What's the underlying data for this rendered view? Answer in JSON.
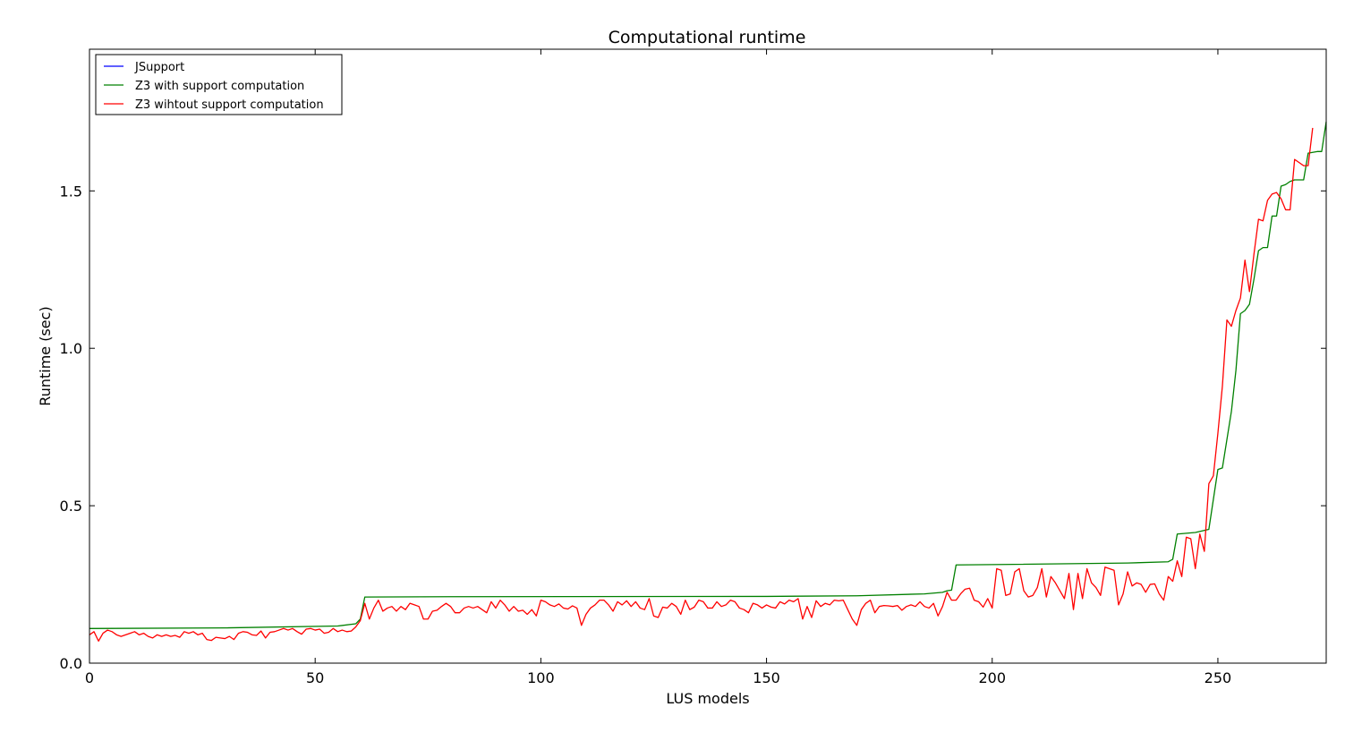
{
  "chart_data": {
    "type": "line",
    "title": "Computational runtime",
    "xlabel": "LUS models",
    "ylabel": "Runtime (sec)",
    "xlim": [
      0,
      274
    ],
    "ylim": [
      0.0,
      1.95
    ],
    "xticks": [
      0,
      50,
      100,
      150,
      200,
      250
    ],
    "xtick_labels": [
      "0",
      "50",
      "100",
      "150",
      "200",
      "250"
    ],
    "yticks": [
      0.0,
      0.5,
      1.0,
      1.5
    ],
    "ytick_labels": [
      "0.0",
      "0.5",
      "1.0",
      "1.5"
    ],
    "grid": false,
    "legend_position": "top-left",
    "series": [
      {
        "name": "JSupport",
        "color": "#0000ff",
        "keypoints": []
      },
      {
        "name": "Z3 with support computation",
        "color": "#008000",
        "keypoints": [
          [
            0,
            0.11
          ],
          [
            30,
            0.112
          ],
          [
            55,
            0.118
          ],
          [
            59,
            0.125
          ],
          [
            60,
            0.14
          ],
          [
            61,
            0.21
          ],
          [
            80,
            0.211
          ],
          [
            150,
            0.212
          ],
          [
            170,
            0.214
          ],
          [
            185,
            0.22
          ],
          [
            189,
            0.225
          ],
          [
            190,
            0.23
          ],
          [
            191,
            0.232
          ],
          [
            192,
            0.312
          ],
          [
            200,
            0.313
          ],
          [
            230,
            0.318
          ],
          [
            239,
            0.322
          ],
          [
            240,
            0.33
          ],
          [
            241,
            0.41
          ],
          [
            245,
            0.415
          ],
          [
            248,
            0.425
          ],
          [
            250,
            0.615
          ],
          [
            251,
            0.62
          ],
          [
            253,
            0.8
          ],
          [
            254,
            0.93
          ],
          [
            255,
            1.11
          ],
          [
            256,
            1.12
          ],
          [
            257,
            1.14
          ],
          [
            258,
            1.22
          ],
          [
            259,
            1.31
          ],
          [
            260,
            1.32
          ],
          [
            261,
            1.32
          ],
          [
            262,
            1.42
          ],
          [
            263,
            1.42
          ],
          [
            264,
            1.515
          ],
          [
            265,
            1.52
          ],
          [
            266,
            1.53
          ],
          [
            267,
            1.535
          ],
          [
            268,
            1.535
          ],
          [
            269,
            1.535
          ],
          [
            270,
            1.62
          ],
          [
            272,
            1.625
          ],
          [
            273,
            1.625
          ],
          [
            274,
            1.72
          ]
        ]
      },
      {
        "name": "Z3 wihtout support computation",
        "color": "#ff0000",
        "keypoints": [
          [
            0,
            0.09
          ],
          [
            1,
            0.1
          ],
          [
            2,
            0.07
          ],
          [
            3,
            0.095
          ],
          [
            4,
            0.105
          ],
          [
            5,
            0.1
          ],
          [
            6,
            0.09
          ],
          [
            7,
            0.085
          ],
          [
            8,
            0.09
          ],
          [
            9,
            0.095
          ],
          [
            10,
            0.1
          ],
          [
            11,
            0.09
          ],
          [
            12,
            0.095
          ],
          [
            13,
            0.085
          ],
          [
            14,
            0.08
          ],
          [
            15,
            0.09
          ],
          [
            16,
            0.085
          ],
          [
            17,
            0.09
          ],
          [
            18,
            0.085
          ],
          [
            19,
            0.088
          ],
          [
            20,
            0.082
          ],
          [
            21,
            0.1
          ],
          [
            22,
            0.095
          ],
          [
            23,
            0.1
          ],
          [
            24,
            0.09
          ],
          [
            25,
            0.095
          ],
          [
            26,
            0.075
          ],
          [
            27,
            0.072
          ],
          [
            28,
            0.082
          ],
          [
            29,
            0.08
          ],
          [
            30,
            0.078
          ],
          [
            31,
            0.085
          ],
          [
            32,
            0.075
          ],
          [
            33,
            0.095
          ],
          [
            34,
            0.1
          ],
          [
            35,
            0.098
          ],
          [
            36,
            0.09
          ],
          [
            37,
            0.088
          ],
          [
            38,
            0.102
          ],
          [
            39,
            0.08
          ],
          [
            40,
            0.098
          ],
          [
            41,
            0.1
          ],
          [
            42,
            0.105
          ],
          [
            43,
            0.11
          ],
          [
            44,
            0.105
          ],
          [
            45,
            0.11
          ],
          [
            46,
            0.1
          ],
          [
            47,
            0.092
          ],
          [
            48,
            0.108
          ],
          [
            49,
            0.11
          ],
          [
            50,
            0.105
          ],
          [
            51,
            0.108
          ],
          [
            52,
            0.095
          ],
          [
            53,
            0.098
          ],
          [
            54,
            0.11
          ],
          [
            55,
            0.1
          ],
          [
            56,
            0.105
          ],
          [
            57,
            0.1
          ],
          [
            58,
            0.102
          ],
          [
            59,
            0.115
          ],
          [
            60,
            0.135
          ],
          [
            61,
            0.19
          ],
          [
            62,
            0.14
          ],
          [
            63,
            0.175
          ],
          [
            64,
            0.2
          ],
          [
            65,
            0.165
          ],
          [
            66,
            0.175
          ],
          [
            67,
            0.18
          ],
          [
            68,
            0.165
          ],
          [
            69,
            0.18
          ],
          [
            70,
            0.17
          ],
          [
            71,
            0.19
          ],
          [
            72,
            0.185
          ],
          [
            73,
            0.18
          ],
          [
            74,
            0.14
          ],
          [
            75,
            0.14
          ],
          [
            76,
            0.165
          ],
          [
            77,
            0.168
          ],
          [
            78,
            0.18
          ],
          [
            79,
            0.19
          ],
          [
            80,
            0.18
          ],
          [
            81,
            0.16
          ],
          [
            82,
            0.16
          ],
          [
            83,
            0.175
          ],
          [
            84,
            0.18
          ],
          [
            85,
            0.175
          ],
          [
            86,
            0.18
          ],
          [
            87,
            0.17
          ],
          [
            88,
            0.16
          ],
          [
            89,
            0.195
          ],
          [
            90,
            0.175
          ],
          [
            91,
            0.2
          ],
          [
            92,
            0.185
          ],
          [
            93,
            0.165
          ],
          [
            94,
            0.18
          ],
          [
            95,
            0.165
          ],
          [
            96,
            0.168
          ],
          [
            97,
            0.155
          ],
          [
            98,
            0.17
          ],
          [
            99,
            0.15
          ],
          [
            100,
            0.2
          ],
          [
            101,
            0.195
          ],
          [
            102,
            0.185
          ],
          [
            103,
            0.18
          ],
          [
            104,
            0.188
          ],
          [
            105,
            0.175
          ],
          [
            106,
            0.172
          ],
          [
            107,
            0.182
          ],
          [
            108,
            0.175
          ],
          [
            109,
            0.12
          ],
          [
            110,
            0.155
          ],
          [
            111,
            0.175
          ],
          [
            112,
            0.185
          ],
          [
            113,
            0.2
          ],
          [
            114,
            0.2
          ],
          [
            115,
            0.185
          ],
          [
            116,
            0.165
          ],
          [
            117,
            0.195
          ],
          [
            118,
            0.185
          ],
          [
            119,
            0.198
          ],
          [
            120,
            0.18
          ],
          [
            121,
            0.195
          ],
          [
            122,
            0.175
          ],
          [
            123,
            0.17
          ],
          [
            124,
            0.205
          ],
          [
            125,
            0.15
          ],
          [
            126,
            0.145
          ],
          [
            127,
            0.178
          ],
          [
            128,
            0.175
          ],
          [
            129,
            0.19
          ],
          [
            130,
            0.18
          ],
          [
            131,
            0.155
          ],
          [
            132,
            0.2
          ],
          [
            133,
            0.17
          ],
          [
            134,
            0.178
          ],
          [
            135,
            0.2
          ],
          [
            136,
            0.195
          ],
          [
            137,
            0.175
          ],
          [
            138,
            0.175
          ],
          [
            139,
            0.195
          ],
          [
            140,
            0.18
          ],
          [
            141,
            0.185
          ],
          [
            142,
            0.2
          ],
          [
            143,
            0.195
          ],
          [
            144,
            0.175
          ],
          [
            145,
            0.17
          ],
          [
            146,
            0.16
          ],
          [
            147,
            0.19
          ],
          [
            148,
            0.185
          ],
          [
            149,
            0.175
          ],
          [
            150,
            0.185
          ],
          [
            151,
            0.178
          ],
          [
            152,
            0.175
          ],
          [
            153,
            0.195
          ],
          [
            154,
            0.188
          ],
          [
            155,
            0.2
          ],
          [
            156,
            0.195
          ],
          [
            157,
            0.205
          ],
          [
            158,
            0.14
          ],
          [
            159,
            0.18
          ],
          [
            160,
            0.145
          ],
          [
            161,
            0.198
          ],
          [
            162,
            0.18
          ],
          [
            163,
            0.19
          ],
          [
            164,
            0.185
          ],
          [
            165,
            0.2
          ],
          [
            166,
            0.198
          ],
          [
            167,
            0.2
          ],
          [
            168,
            0.17
          ],
          [
            169,
            0.14
          ],
          [
            170,
            0.12
          ],
          [
            171,
            0.17
          ],
          [
            172,
            0.19
          ],
          [
            173,
            0.2
          ],
          [
            174,
            0.16
          ],
          [
            175,
            0.18
          ],
          [
            176,
            0.183
          ],
          [
            177,
            0.182
          ],
          [
            178,
            0.18
          ],
          [
            179,
            0.183
          ],
          [
            180,
            0.168
          ],
          [
            181,
            0.18
          ],
          [
            182,
            0.185
          ],
          [
            183,
            0.18
          ],
          [
            184,
            0.195
          ],
          [
            185,
            0.18
          ],
          [
            186,
            0.175
          ],
          [
            187,
            0.19
          ],
          [
            188,
            0.15
          ],
          [
            189,
            0.18
          ],
          [
            190,
            0.225
          ],
          [
            191,
            0.2
          ],
          [
            192,
            0.2
          ],
          [
            193,
            0.22
          ],
          [
            194,
            0.235
          ],
          [
            195,
            0.238
          ],
          [
            196,
            0.2
          ],
          [
            197,
            0.195
          ],
          [
            198,
            0.178
          ],
          [
            199,
            0.205
          ],
          [
            200,
            0.175
          ],
          [
            201,
            0.3
          ],
          [
            202,
            0.295
          ],
          [
            203,
            0.215
          ],
          [
            204,
            0.22
          ],
          [
            205,
            0.29
          ],
          [
            206,
            0.3
          ],
          [
            207,
            0.23
          ],
          [
            208,
            0.21
          ],
          [
            209,
            0.215
          ],
          [
            210,
            0.24
          ],
          [
            211,
            0.3
          ],
          [
            212,
            0.21
          ],
          [
            213,
            0.275
          ],
          [
            214,
            0.255
          ],
          [
            215,
            0.23
          ],
          [
            216,
            0.205
          ],
          [
            217,
            0.285
          ],
          [
            218,
            0.17
          ],
          [
            219,
            0.285
          ],
          [
            220,
            0.205
          ],
          [
            221,
            0.3
          ],
          [
            222,
            0.255
          ],
          [
            223,
            0.24
          ],
          [
            224,
            0.215
          ],
          [
            225,
            0.305
          ],
          [
            226,
            0.3
          ],
          [
            227,
            0.295
          ],
          [
            228,
            0.185
          ],
          [
            229,
            0.22
          ],
          [
            230,
            0.29
          ],
          [
            231,
            0.245
          ],
          [
            232,
            0.255
          ],
          [
            233,
            0.25
          ],
          [
            234,
            0.225
          ],
          [
            235,
            0.25
          ],
          [
            236,
            0.252
          ],
          [
            237,
            0.22
          ],
          [
            238,
            0.2
          ],
          [
            239,
            0.275
          ],
          [
            240,
            0.26
          ],
          [
            241,
            0.325
          ],
          [
            242,
            0.275
          ],
          [
            243,
            0.4
          ],
          [
            244,
            0.395
          ],
          [
            245,
            0.3
          ],
          [
            246,
            0.41
          ],
          [
            247,
            0.355
          ],
          [
            248,
            0.57
          ],
          [
            249,
            0.595
          ],
          [
            250,
            0.73
          ],
          [
            251,
            0.88
          ],
          [
            252,
            1.09
          ],
          [
            253,
            1.07
          ],
          [
            254,
            1.12
          ],
          [
            255,
            1.16
          ],
          [
            256,
            1.28
          ],
          [
            257,
            1.18
          ],
          [
            258,
            1.3
          ],
          [
            259,
            1.41
          ],
          [
            260,
            1.405
          ],
          [
            261,
            1.47
          ],
          [
            262,
            1.49
          ],
          [
            263,
            1.495
          ],
          [
            264,
            1.475
          ],
          [
            265,
            1.44
          ],
          [
            266,
            1.44
          ],
          [
            267,
            1.6
          ],
          [
            268,
            1.59
          ],
          [
            269,
            1.58
          ],
          [
            270,
            1.58
          ],
          [
            271,
            1.7
          ]
        ]
      }
    ]
  }
}
